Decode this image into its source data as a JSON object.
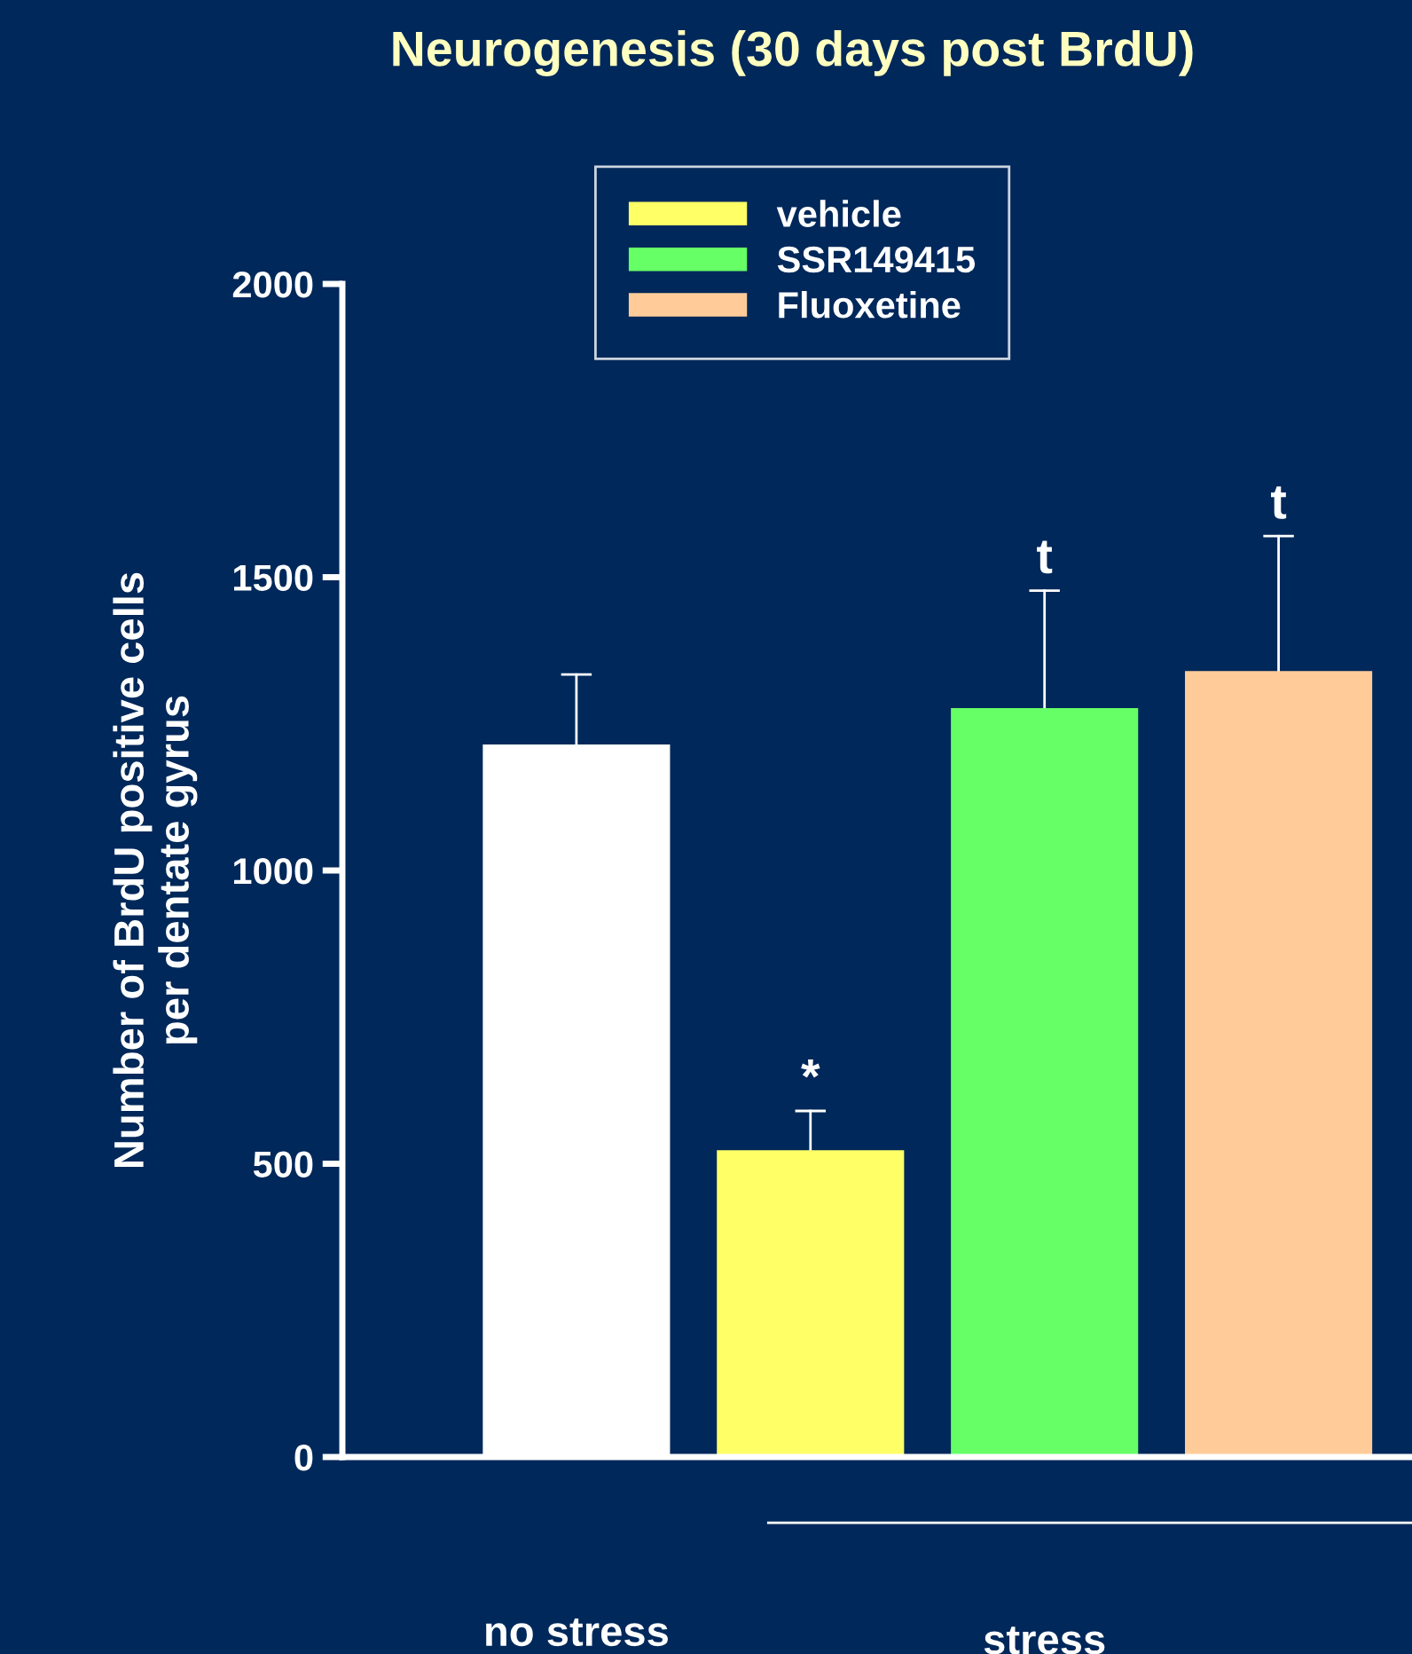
{
  "chart_data": {
    "type": "bar",
    "title": "Neurogenesis (30 days post BrdU)",
    "ylabel": "Number of BrdU positive cells\nper dentate gyrus",
    "categories": [
      "no stress",
      null,
      "stress",
      null
    ],
    "series": [
      {
        "color": "#ffffff",
        "values": [
          1215,
          null,
          null,
          null
        ],
        "errors": [
          [
            1215,
            1334
          ],
          null,
          null,
          null
        ]
      },
      {
        "name": "vehicle",
        "color": "#ffff66",
        "values": [
          null,
          523,
          null,
          null
        ],
        "errors": [
          null,
          [
            523,
            590
          ],
          null,
          null
        ],
        "value_labels": [
          null,
          "*",
          null,
          null
        ]
      },
      {
        "name": "SSR149415",
        "color": "#66ff66",
        "values": [
          null,
          null,
          1277,
          null
        ],
        "errors": [
          null,
          null,
          [
            1277,
            1477
          ],
          null
        ],
        "value_labels": [
          null,
          null,
          "t",
          null
        ]
      },
      {
        "name": "Fluoxetine",
        "color": "#ffcc99",
        "values": [
          null,
          null,
          null,
          1340
        ],
        "errors": [
          null,
          null,
          null,
          [
            1340,
            1570
          ]
        ],
        "value_labels": [
          null,
          null,
          null,
          "t"
        ]
      }
    ],
    "ylim": [
      0,
      2000
    ],
    "yticks": [
      0,
      500,
      1000,
      1500,
      2000
    ],
    "grid": false,
    "legend": "top"
  }
}
